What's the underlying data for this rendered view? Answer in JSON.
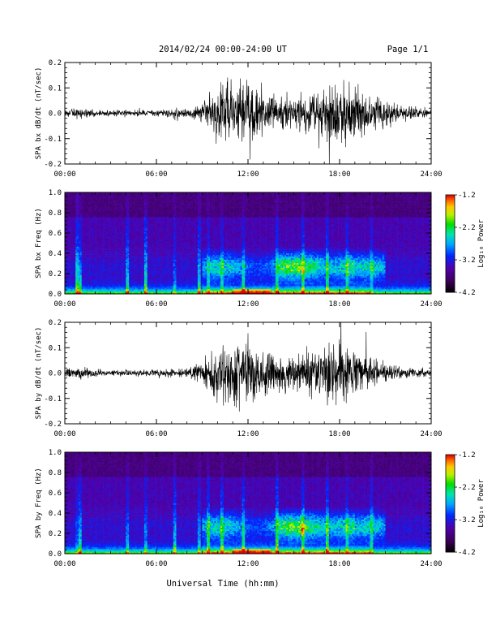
{
  "header": {
    "title": "2014/02/24  00:00-24:00 UT",
    "page": "Page 1/1"
  },
  "footer": {
    "xlabel": "Universal Time (hh:mm)"
  },
  "chart_data": [
    {
      "type": "line",
      "ylabel": "SPA bx dB/dt (nT/sec)",
      "ylim": [
        -0.2,
        0.2
      ],
      "yticks": [
        "0.2",
        "0.1",
        "0.0",
        "-0.1",
        "-0.2"
      ],
      "xlim": [
        "00:00",
        "24:00"
      ],
      "xticks": [
        "00:00",
        "06:00",
        "12:00",
        "18:00",
        "24:00"
      ],
      "envelope": {
        "hours": [
          0,
          1,
          2,
          3,
          4,
          5,
          6,
          7,
          8,
          9,
          10,
          11,
          12,
          13,
          14,
          15,
          16,
          17,
          18,
          19,
          20,
          21,
          22,
          23,
          24
        ],
        "amplitude": [
          0.03,
          0.035,
          0.02,
          0.02,
          0.02,
          0.02,
          0.02,
          0.025,
          0.03,
          0.06,
          0.2,
          0.2,
          0.2,
          0.15,
          0.1,
          0.12,
          0.13,
          0.15,
          0.2,
          0.17,
          0.12,
          0.08,
          0.05,
          0.04,
          0.03
        ]
      }
    },
    {
      "type": "heatmap",
      "ylabel": "SPA bx Freq (Hz)",
      "ylim": [
        0.0,
        1.0
      ],
      "yticks": [
        "1.0",
        "0.8",
        "0.6",
        "0.4",
        "0.2",
        "0.0"
      ],
      "xlim": [
        "00:00",
        "24:00"
      ],
      "xticks": [
        "00:00",
        "06:00",
        "12:00",
        "18:00",
        "24:00"
      ],
      "colorbar": {
        "label": "Log₁₀ Power",
        "range": [
          -4.2,
          -1.2
        ],
        "ticks": [
          "-1.2",
          "-2.2",
          "-3.2",
          "-4.2"
        ]
      }
    },
    {
      "type": "line",
      "ylabel": "SPA by dB/dt (nT/sec)",
      "ylim": [
        -0.2,
        0.2
      ],
      "yticks": [
        "0.2",
        "0.1",
        "0.0",
        "-0.1",
        "-0.2"
      ],
      "xlim": [
        "00:00",
        "24:00"
      ],
      "xticks": [
        "00:00",
        "06:00",
        "12:00",
        "18:00",
        "24:00"
      ],
      "envelope": {
        "hours": [
          0,
          1,
          2,
          3,
          4,
          5,
          6,
          7,
          8,
          9,
          10,
          11,
          12,
          13,
          14,
          15,
          16,
          17,
          18,
          19,
          20,
          21,
          22,
          23,
          24
        ],
        "amplitude": [
          0.03,
          0.035,
          0.025,
          0.02,
          0.02,
          0.02,
          0.025,
          0.025,
          0.03,
          0.06,
          0.18,
          0.2,
          0.2,
          0.14,
          0.12,
          0.13,
          0.14,
          0.17,
          0.2,
          0.16,
          0.1,
          0.06,
          0.04,
          0.03,
          0.03
        ]
      }
    },
    {
      "type": "heatmap",
      "ylabel": "SPA by Freq (Hz)",
      "ylim": [
        0.0,
        1.0
      ],
      "yticks": [
        "1.0",
        "0.8",
        "0.6",
        "0.4",
        "0.2",
        "0.0"
      ],
      "xlim": [
        "00:00",
        "24:00"
      ],
      "xticks": [
        "00:00",
        "06:00",
        "12:00",
        "18:00",
        "24:00"
      ],
      "colorbar": {
        "label": "Log₁₀ Power",
        "range": [
          -4.2,
          -1.2
        ],
        "ticks": [
          "-1.2",
          "-2.2",
          "-3.2",
          "-4.2"
        ]
      }
    }
  ]
}
